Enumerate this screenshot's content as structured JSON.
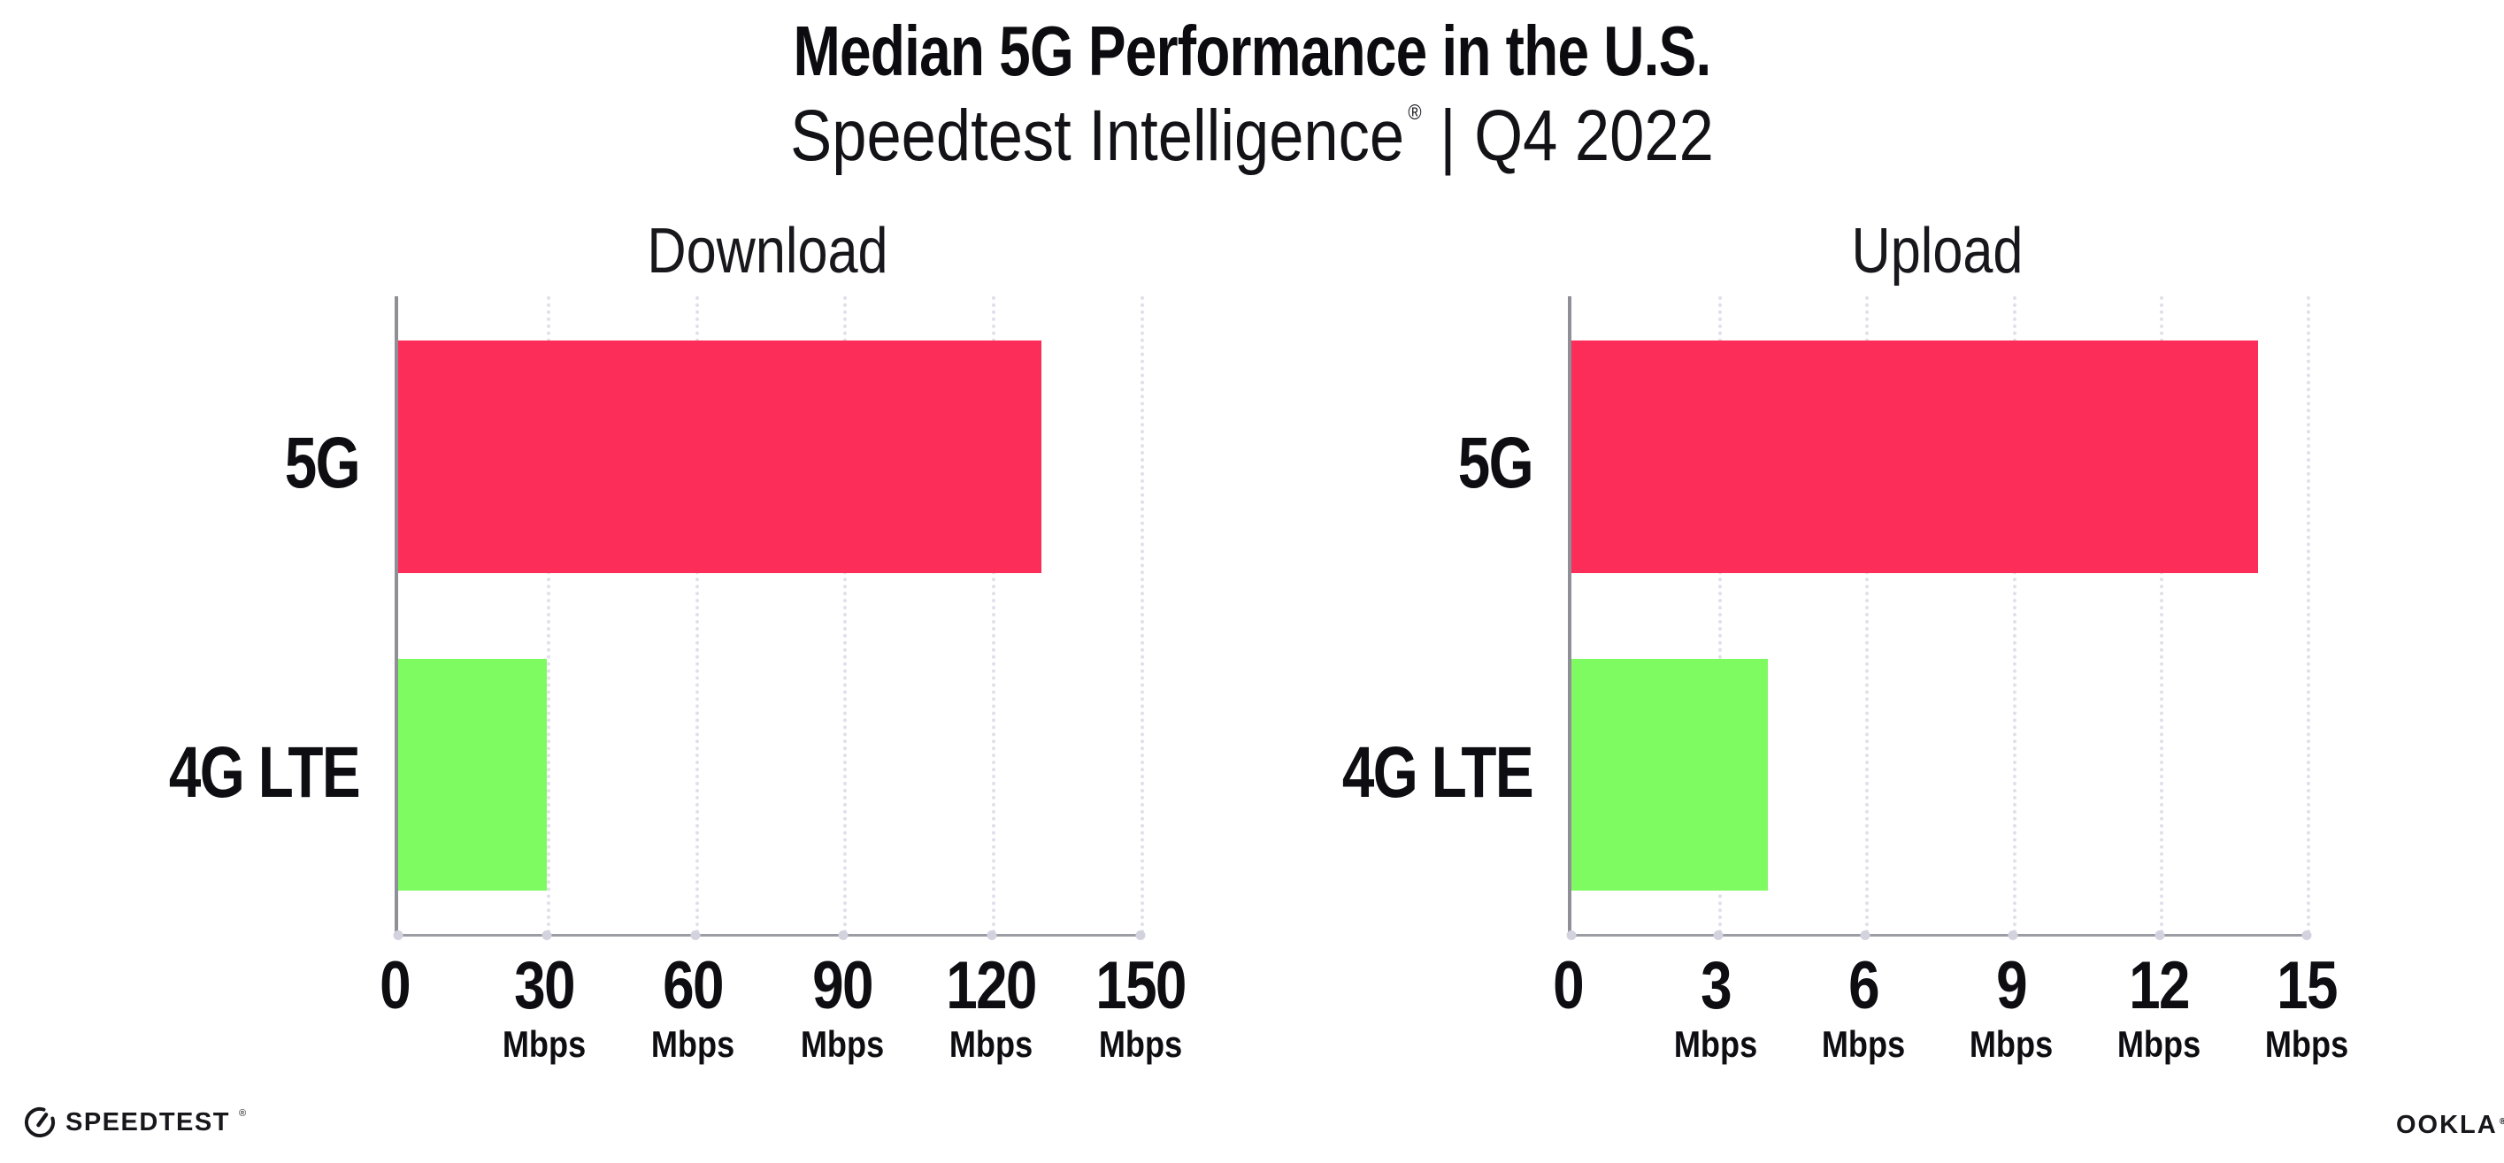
{
  "header": {
    "title": "Median 5G Performance in the U.S.",
    "subtitle": {
      "brand": "Speedtest Intelligence",
      "registered": "®",
      "separator": "|",
      "period": "Q4 2022"
    }
  },
  "chart_data": [
    {
      "type": "bar",
      "orientation": "horizontal",
      "title": "Download",
      "categories": [
        "5G",
        "4G LTE"
      ],
      "values": [
        130,
        30
      ],
      "unit": "Mbps",
      "xlim": [
        0,
        150
      ],
      "xticks": [
        0,
        30,
        60,
        90,
        120,
        150
      ],
      "ticks": [
        {
          "label": "0",
          "unit": ""
        },
        {
          "label": "30",
          "unit": "Mbps"
        },
        {
          "label": "60",
          "unit": "Mbps"
        },
        {
          "label": "90",
          "unit": "Mbps"
        },
        {
          "label": "120",
          "unit": "Mbps"
        },
        {
          "label": "150",
          "unit": "Mbps"
        }
      ],
      "bar_colors": [
        "#FD2D59",
        "#7EFB60"
      ],
      "grid": "vertical-dotted",
      "legend": "none"
    },
    {
      "type": "bar",
      "orientation": "horizontal",
      "title": "Upload",
      "categories": [
        "5G",
        "4G LTE"
      ],
      "values": [
        14,
        4
      ],
      "unit": "Mbps",
      "xlim": [
        0,
        15
      ],
      "xticks": [
        0,
        3,
        6,
        9,
        12,
        15
      ],
      "ticks": [
        {
          "label": "0",
          "unit": ""
        },
        {
          "label": "3",
          "unit": "Mbps"
        },
        {
          "label": "6",
          "unit": "Mbps"
        },
        {
          "label": "9",
          "unit": "Mbps"
        },
        {
          "label": "12",
          "unit": "Mbps"
        },
        {
          "label": "15",
          "unit": "Mbps"
        }
      ],
      "bar_colors": [
        "#FD2D59",
        "#7EFB60"
      ],
      "grid": "vertical-dotted",
      "legend": "none"
    }
  ],
  "colors": {
    "bar_5g": "#FD2D59",
    "bar_4g_lte": "#7EFB60",
    "axis_line": "#9C9CA4",
    "axis_spine": "#8F8F97",
    "gridline": "#E0E0EA",
    "text": "#0D0D12",
    "background": "#FFFFFF"
  },
  "footer": {
    "speedtest": {
      "label": "SPEEDTEST",
      "mark": "®"
    },
    "ookla": {
      "label": "OOKLA",
      "mark": "®"
    }
  }
}
